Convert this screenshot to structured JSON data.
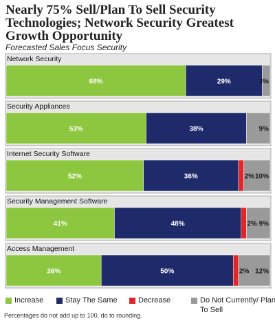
{
  "title": "Nearly 75% Sell/Plan To Sell Security Technologies; Network Security Greatest Growth Opportunity",
  "subtitle": "Forecasted Sales Focus Security",
  "footnote": "Percentages do not add up to 100, do to rounding.",
  "colors": {
    "increase": "#8dc63f",
    "stay_the_same": "#1f2a6b",
    "decrease": "#e0262b",
    "not_currently": "#9a9a9a",
    "panel": "#e6e6e6"
  },
  "chart_data": {
    "type": "bar",
    "orientation": "horizontal-stacked",
    "title": "Nearly 75% Sell/Plan To Sell Security Technologies; Network Security Greatest Growth Opportunity",
    "subtitle": "Forecasted Sales Focus Security",
    "categories": [
      "Network Security",
      "Security Appliances",
      "Internet Security Software",
      "Security Management Software",
      "Access Management"
    ],
    "series": [
      {
        "name": "Increase",
        "values": [
          68,
          53,
          52,
          41,
          36
        ],
        "labels": [
          "68%",
          "53%",
          "52%",
          "41%",
          "36%"
        ]
      },
      {
        "name": "Stay The Same",
        "values": [
          29,
          38,
          36,
          48,
          50
        ],
        "labels": [
          "29%",
          "38%",
          "36%",
          "48%",
          "50%"
        ]
      },
      {
        "name": "Decrease",
        "values": [
          0,
          0,
          2,
          2,
          2
        ],
        "labels": [
          "",
          "",
          "2%",
          "2%",
          "2%"
        ]
      },
      {
        "name": "Do Not Currently/ Plan To Sell",
        "values": [
          3,
          9,
          10,
          9,
          12
        ],
        "labels": [
          "3%",
          "9%",
          "10%",
          "9%",
          "12%"
        ]
      }
    ],
    "xlim": [
      0,
      100
    ],
    "legend_position": "bottom",
    "grid": false
  },
  "legend": [
    {
      "label": "Increase"
    },
    {
      "label": "Stay The Same"
    },
    {
      "label": "Decrease"
    },
    {
      "label": "Do Not Currently/ Plan To Sell"
    }
  ]
}
